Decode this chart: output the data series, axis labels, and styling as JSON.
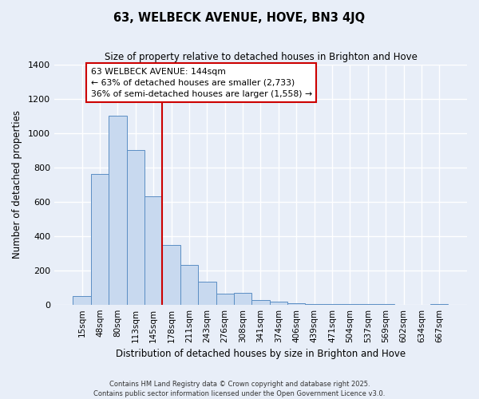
{
  "title": "63, WELBECK AVENUE, HOVE, BN3 4JQ",
  "subtitle": "Size of property relative to detached houses in Brighton and Hove",
  "xlabel": "Distribution of detached houses by size in Brighton and Hove",
  "ylabel": "Number of detached properties",
  "bar_labels": [
    "15sqm",
    "48sqm",
    "80sqm",
    "113sqm",
    "145sqm",
    "178sqm",
    "211sqm",
    "243sqm",
    "276sqm",
    "308sqm",
    "341sqm",
    "374sqm",
    "406sqm",
    "439sqm",
    "471sqm",
    "504sqm",
    "537sqm",
    "569sqm",
    "602sqm",
    "634sqm",
    "667sqm"
  ],
  "bar_values": [
    50,
    760,
    1100,
    900,
    630,
    345,
    233,
    133,
    65,
    70,
    28,
    18,
    10,
    5,
    3,
    2,
    1,
    1,
    0,
    0,
    1
  ],
  "bar_color": "#c8d9ef",
  "bar_edge_color": "#5b8ec4",
  "vline_x": 4.5,
  "vline_color": "#cc0000",
  "annotation_line1": "63 WELBECK AVENUE: 144sqm",
  "annotation_line2": "← 63% of detached houses are smaller (2,733)",
  "annotation_line3": "36% of semi-detached houses are larger (1,558) →",
  "annotation_box_color": "#ffffff",
  "annotation_box_edge": "#cc0000",
  "ylim": [
    0,
    1400
  ],
  "yticks": [
    0,
    200,
    400,
    600,
    800,
    1000,
    1200,
    1400
  ],
  "footer_line1": "Contains HM Land Registry data © Crown copyright and database right 2025.",
  "footer_line2": "Contains public sector information licensed under the Open Government Licence v3.0.",
  "bg_color": "#e8eef8",
  "plot_bg_color": "#e8eef8",
  "grid_color": "#c8d0e0"
}
